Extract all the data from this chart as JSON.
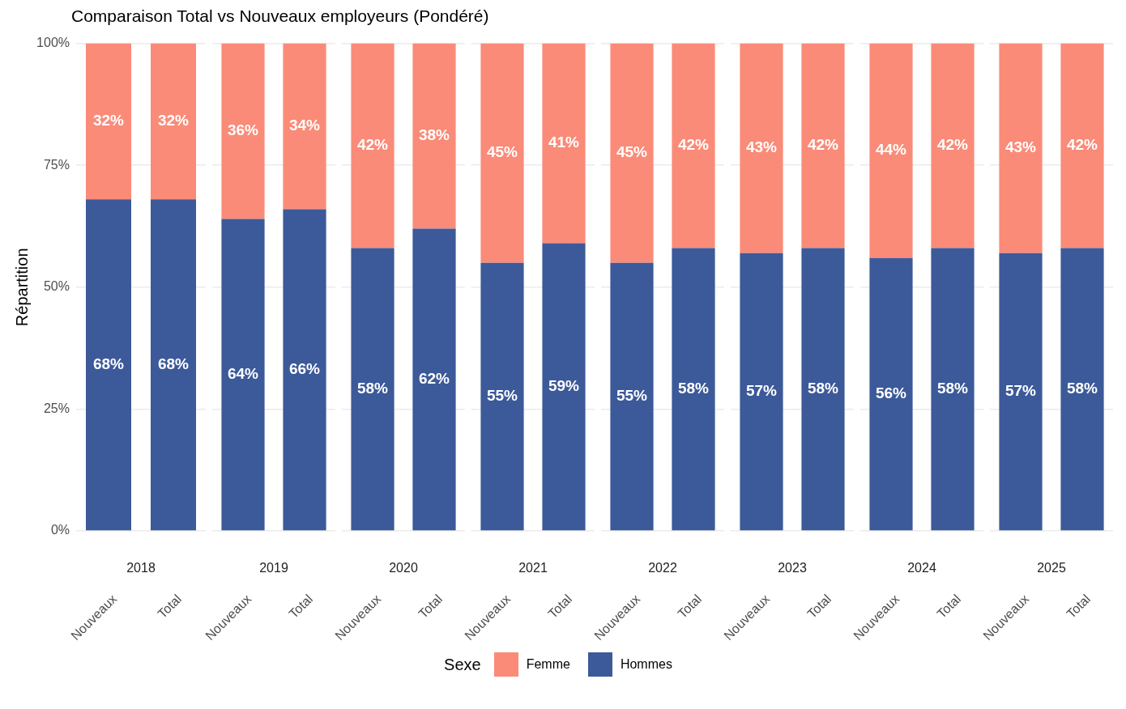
{
  "chart_data": [
    {
      "type": "bar",
      "title": "Comparaison Total vs Nouveaux employeurs (Pondéré)",
      "ylabel": "Répartition",
      "xlabel": "2018",
      "categories": [
        "Nouveaux",
        "Total"
      ],
      "stacked": true,
      "ylim": [
        0,
        100
      ],
      "yticks": [
        {
          "value": 0,
          "label": "0%"
        },
        {
          "value": 25,
          "label": "25%"
        },
        {
          "value": 50,
          "label": "50%"
        },
        {
          "value": 75,
          "label": "75%"
        },
        {
          "value": 100,
          "label": "100%"
        }
      ],
      "grid": true,
      "legend": "bottom",
      "legend_title": "Sexe",
      "series": [
        {
          "name": "Hommes",
          "color": "#3c5a99",
          "values": [
            68,
            68
          ],
          "value_labels": [
            "68%",
            "68%"
          ]
        },
        {
          "name": "Femme",
          "color": "#fa8b78",
          "values": [
            32,
            32
          ],
          "value_labels": [
            "32%",
            "32%"
          ]
        }
      ]
    },
    {
      "type": "bar",
      "xlabel": "2019",
      "categories": [
        "Nouveaux",
        "Total"
      ],
      "stacked": true,
      "ylim": [
        0,
        100
      ],
      "yticks": [
        0,
        25,
        50,
        75,
        100
      ],
      "grid": true,
      "tick_labels": "x",
      "series": [
        {
          "color": "#3c5a99",
          "values": [
            64,
            66
          ],
          "value_labels": [
            "64%",
            "66%"
          ]
        },
        {
          "color": "#fa8b78",
          "values": [
            36,
            34
          ],
          "value_labels": [
            "36%",
            "34%"
          ]
        }
      ]
    },
    {
      "type": "bar",
      "xlabel": "2020",
      "categories": [
        "Nouveaux",
        "Total"
      ],
      "stacked": true,
      "ylim": [
        0,
        100
      ],
      "yticks": [
        0,
        25,
        50,
        75,
        100
      ],
      "grid": true,
      "tick_labels": "x",
      "series": [
        {
          "color": "#3c5a99",
          "values": [
            58,
            62
          ],
          "value_labels": [
            "58%",
            "62%"
          ]
        },
        {
          "color": "#fa8b78",
          "values": [
            42,
            38
          ],
          "value_labels": [
            "42%",
            "38%"
          ]
        }
      ]
    },
    {
      "type": "bar",
      "xlabel": "2021",
      "categories": [
        "Nouveaux",
        "Total"
      ],
      "stacked": true,
      "ylim": [
        0,
        100
      ],
      "yticks": [
        0,
        25,
        50,
        75,
        100
      ],
      "grid": true,
      "tick_labels": "x",
      "series": [
        {
          "color": "#3c5a99",
          "values": [
            55,
            59
          ],
          "value_labels": [
            "55%",
            "59%"
          ]
        },
        {
          "color": "#fa8b78",
          "values": [
            45,
            41
          ],
          "value_labels": [
            "45%",
            "41%"
          ]
        }
      ]
    },
    {
      "type": "bar",
      "xlabel": "2022",
      "categories": [
        "Nouveaux",
        "Total"
      ],
      "stacked": true,
      "ylim": [
        0,
        100
      ],
      "yticks": [
        0,
        25,
        50,
        75,
        100
      ],
      "grid": true,
      "tick_labels": "x",
      "series": [
        {
          "color": "#3c5a99",
          "values": [
            55,
            58
          ],
          "value_labels": [
            "55%",
            "58%"
          ]
        },
        {
          "color": "#fa8b78",
          "values": [
            45,
            42
          ],
          "value_labels": [
            "45%",
            "42%"
          ]
        }
      ]
    },
    {
      "type": "bar",
      "xlabel": "2023",
      "categories": [
        "Nouveaux",
        "Total"
      ],
      "stacked": true,
      "ylim": [
        0,
        100
      ],
      "yticks": [
        0,
        25,
        50,
        75,
        100
      ],
      "grid": true,
      "tick_labels": "x",
      "series": [
        {
          "color": "#3c5a99",
          "values": [
            57,
            58
          ],
          "value_labels": [
            "57%",
            "58%"
          ]
        },
        {
          "color": "#fa8b78",
          "values": [
            43,
            42
          ],
          "value_labels": [
            "43%",
            "42%"
          ]
        }
      ]
    },
    {
      "type": "bar",
      "xlabel": "2024",
      "categories": [
        "Nouveaux",
        "Total"
      ],
      "stacked": true,
      "ylim": [
        0,
        100
      ],
      "yticks": [
        0,
        25,
        50,
        75,
        100
      ],
      "grid": true,
      "tick_labels": "x",
      "series": [
        {
          "color": "#3c5a99",
          "values": [
            56,
            58
          ],
          "value_labels": [
            "56%",
            "58%"
          ]
        },
        {
          "color": "#fa8b78",
          "values": [
            44,
            42
          ],
          "value_labels": [
            "44%",
            "42%"
          ]
        }
      ]
    },
    {
      "type": "bar",
      "xlabel": "2025",
      "categories": [
        "Nouveaux",
        "Total"
      ],
      "stacked": true,
      "ylim": [
        0,
        100
      ],
      "yticks": [
        0,
        25,
        50,
        75,
        100
      ],
      "grid": true,
      "tick_labels": "x",
      "series": [
        {
          "color": "#3c5a99",
          "values": [
            57,
            58
          ],
          "value_labels": [
            "57%",
            "58%"
          ]
        },
        {
          "color": "#fa8b78",
          "values": [
            43,
            42
          ],
          "value_labels": [
            "43%",
            "42%"
          ]
        }
      ]
    }
  ]
}
